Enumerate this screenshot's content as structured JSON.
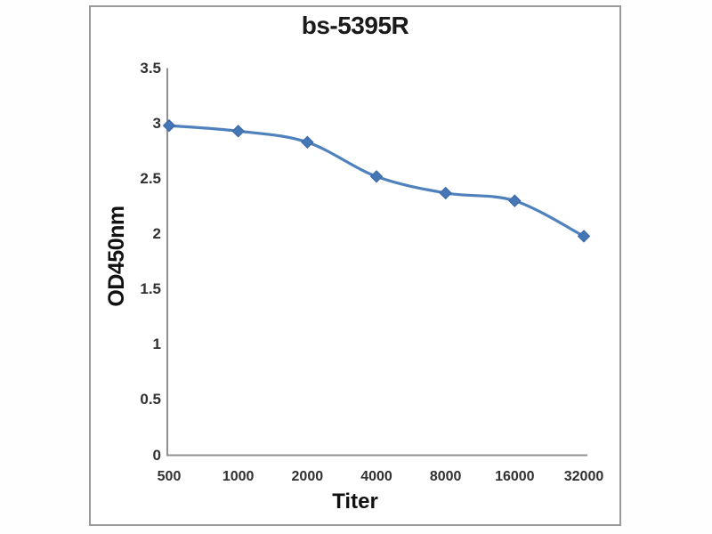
{
  "window": {
    "background": "#ffffff",
    "frame_border_color": "#999999"
  },
  "chart_data": {
    "type": "line",
    "title": "bs-5395R",
    "xlabel": "Titer",
    "ylabel": "OD450nm",
    "categories": [
      "500",
      "1000",
      "2000",
      "4000",
      "8000",
      "16000",
      "32000"
    ],
    "series": [
      {
        "name": "bs-5395R",
        "values": [
          2.98,
          2.93,
          2.83,
          2.52,
          2.37,
          2.3,
          1.98
        ]
      }
    ],
    "ylim": [
      0,
      3.5
    ],
    "ytick_interval": 0.5,
    "ytick_labels": [
      "3.5",
      "3",
      "2.5",
      "2",
      "1.5",
      "1",
      "0.5",
      "0"
    ],
    "grid": false,
    "legend": "none",
    "smooth_line": true,
    "marker": "diamond",
    "colors": {
      "line": "#4f81bd",
      "marker_fill": "#4577b6",
      "marker_stroke": "#3a66a4",
      "axis": "#909090",
      "tick_text": "#303030",
      "title_text": "#1a1a1a"
    }
  }
}
